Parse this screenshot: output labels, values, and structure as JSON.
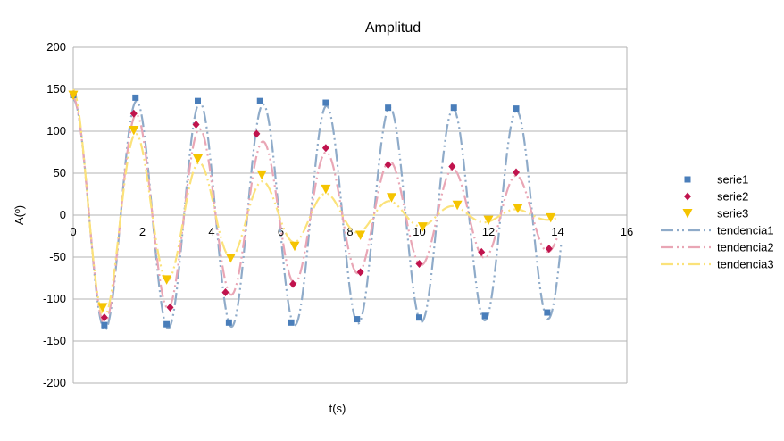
{
  "chart_data": {
    "type": "scatter",
    "title": "Amplitud",
    "xlabel": "t(s)",
    "ylabel": "A(º)",
    "xlim": [
      0,
      16
    ],
    "ylim": [
      -200,
      200
    ],
    "x_ticks": [
      0,
      2,
      4,
      6,
      8,
      10,
      12,
      14,
      16
    ],
    "y_ticks": [
      200,
      150,
      100,
      50,
      0,
      -50,
      -100,
      -150,
      -200
    ],
    "grid": "horizontal",
    "legend_position": "right",
    "series": [
      {
        "name": "serie1",
        "color": "#4a7eba",
        "marker": "square",
        "x": [
          0.0,
          0.9,
          1.8,
          2.7,
          3.6,
          4.5,
          5.4,
          6.3,
          7.3,
          8.2,
          9.1,
          10.0,
          11.0,
          11.9,
          12.8,
          13.7
        ],
        "y": [
          143,
          -131,
          140,
          -130,
          136,
          -128,
          136,
          -128,
          134,
          -124,
          128,
          -122,
          128,
          -120,
          127,
          -116
        ]
      },
      {
        "name": "serie2",
        "color": "#c0134d",
        "marker": "diamond",
        "x": [
          0.0,
          0.9,
          1.75,
          2.8,
          3.55,
          4.4,
          5.3,
          6.35,
          7.3,
          8.3,
          9.1,
          10.0,
          10.95,
          11.8,
          12.8,
          13.75
        ],
        "y": [
          144,
          -122,
          121,
          -110,
          108,
          -92,
          97,
          -82,
          80,
          -68,
          60,
          -58,
          58,
          -44,
          51,
          -40
        ]
      },
      {
        "name": "serie3",
        "color": "#f5c400",
        "marker": "triangle",
        "x": [
          0.0,
          0.85,
          1.75,
          2.7,
          3.6,
          4.55,
          5.45,
          6.4,
          7.3,
          8.3,
          9.2,
          10.1,
          11.1,
          12.0,
          12.85,
          13.8
        ],
        "y": [
          143,
          -110,
          101,
          -77,
          67,
          -51,
          48,
          -37,
          31,
          -24,
          21,
          -14,
          12,
          -6,
          8,
          -3
        ]
      }
    ],
    "trendlines": [
      {
        "name": "tendencia1",
        "color": "#8fabc9",
        "amplitude": 138,
        "decay": 0.008,
        "period": 1.83,
        "x_start": 0,
        "x_end": 14.1
      },
      {
        "name": "tendencia2",
        "color": "#e9a6b5",
        "amplitude": 140,
        "decay": 0.085,
        "period": 1.83,
        "x_start": 0,
        "x_end": 14.0
      },
      {
        "name": "tendencia3",
        "color": "#fbe27a",
        "amplitude": 150,
        "decay": 0.24,
        "period": 1.83,
        "x_start": 0,
        "x_end": 14.0
      }
    ]
  }
}
